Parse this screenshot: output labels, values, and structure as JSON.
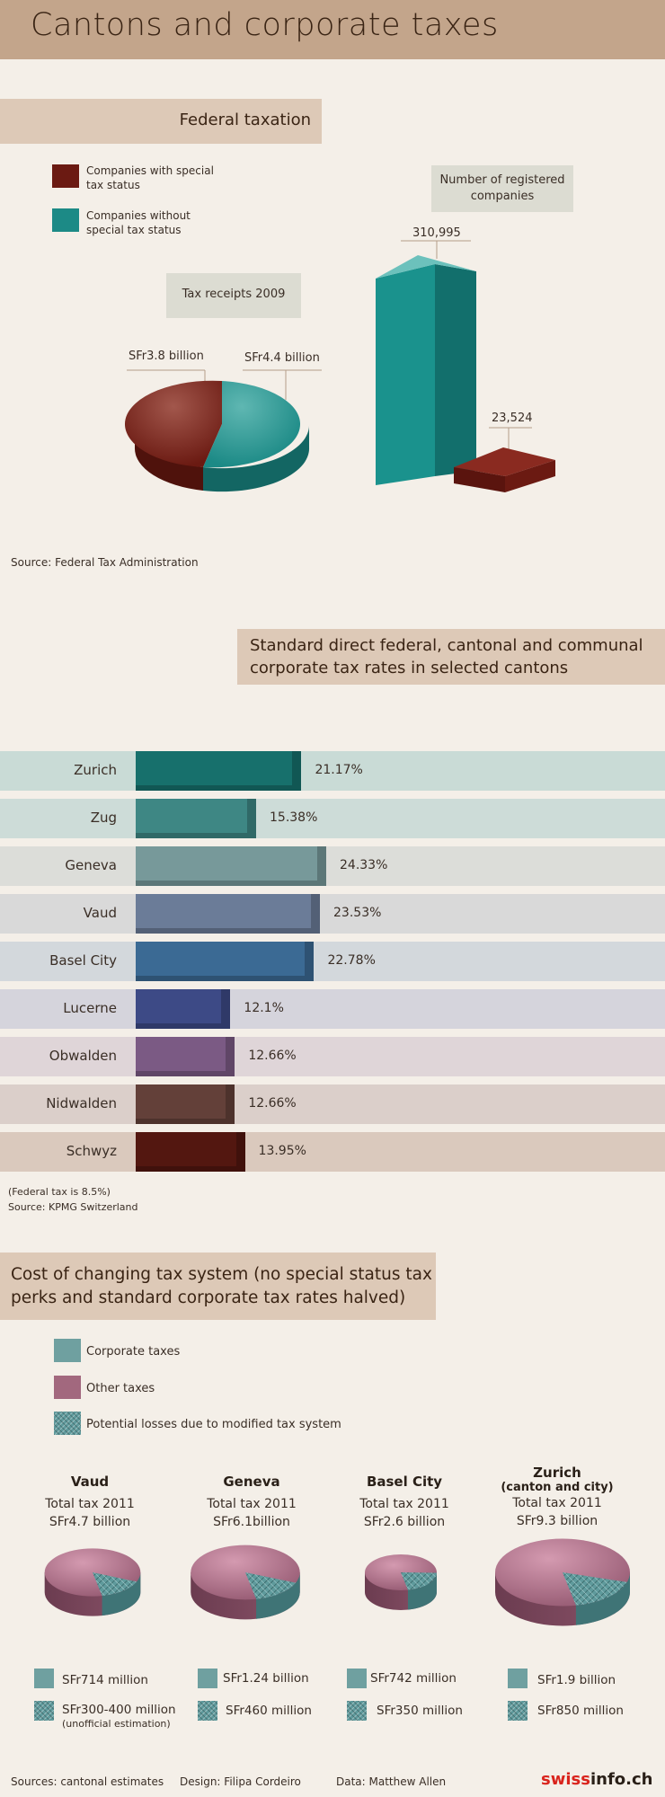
{
  "title": "Cantons and corporate taxes",
  "federal": {
    "heading": "Federal taxation",
    "legend": [
      {
        "label": "Companies with special tax status",
        "color": "#6b1a12"
      },
      {
        "label": "Companies without special tax status",
        "color": "#1c8a86"
      }
    ],
    "pie_title": "Tax receipts 2009",
    "pie_labels": [
      "SFr3.8 billion",
      "SFr4.4 billion"
    ],
    "bar_title": "Number of registered companies",
    "bar_labels": [
      "310,995",
      "23,524"
    ],
    "source": "Source: Federal Tax Administration"
  },
  "rates": {
    "heading": "Standard direct federal, cantonal and communal corporate tax rates in selected cantons",
    "note": "(Federal tax is 8.5%)",
    "source": "Source: KPMG Switzerland"
  },
  "cost": {
    "heading": "Cost of changing tax system (no special status tax perks and standard corporate tax rates halved)",
    "legend": [
      {
        "label": "Corporate taxes",
        "color": "#6fa0a0"
      },
      {
        "label": "Other taxes",
        "color": "#a2687e"
      },
      {
        "label": "Potential losses due to modified tax system",
        "color": "#5f9a9c"
      }
    ],
    "cantons": [
      {
        "name": "Vaud",
        "name2": "",
        "total": "Total tax 2011",
        "amount": "SFr4.7 billion",
        "corp": "SFr714 million",
        "loss": "SFr300-400 million",
        "loss_note": "(unofficial estimation)"
      },
      {
        "name": "Geneva",
        "name2": "",
        "total": "Total tax 2011",
        "amount": "SFr6.1billion",
        "corp": "SFr1.24 billion",
        "loss": "SFr460 million",
        "loss_note": ""
      },
      {
        "name": "Basel City",
        "name2": "",
        "total": "Total tax 2011",
        "amount": "SFr2.6 billion",
        "corp": "SFr742 million",
        "loss": "SFr350 million",
        "loss_note": ""
      },
      {
        "name": "Zurich",
        "name2": "(canton and city)",
        "total": "Total tax 2011",
        "amount": "SFr9.3 billion",
        "corp": "SFr1.9 billion",
        "loss": "SFr850 million",
        "loss_note": ""
      }
    ]
  },
  "footer": {
    "sources": "Sources: cantonal estimates",
    "design": "Design: Filipa Cordeiro",
    "data": "Data: Matthew Allen",
    "brand_a": "swiss",
    "brand_b": "info.ch"
  },
  "chart_data": [
    {
      "type": "pie",
      "title": "Tax receipts 2009",
      "categories": [
        "Companies with special tax status",
        "Companies without special tax status"
      ],
      "values": [
        3.8,
        4.4
      ],
      "units": "SFr billion"
    },
    {
      "type": "bar",
      "title": "Number of registered companies",
      "categories": [
        "Companies without special tax status",
        "Companies with special tax status"
      ],
      "values": [
        310995,
        23524
      ]
    },
    {
      "type": "bar",
      "title": "Standard direct federal, cantonal and communal corporate tax rates in selected cantons",
      "categories": [
        "Zurich",
        "Zug",
        "Geneva",
        "Vaud",
        "Basel City",
        "Lucerne",
        "Obwalden",
        "Nidwalden",
        "Schwyz"
      ],
      "values": [
        21.17,
        15.38,
        24.33,
        23.53,
        22.78,
        12.1,
        12.66,
        12.66,
        13.95
      ],
      "value_labels": [
        "21.17%",
        "15.38%",
        "24.33%",
        "23.53%",
        "22.78%",
        "12.1%",
        "12.66%",
        "12.66%",
        "13.95%"
      ],
      "bar_colors": [
        "#17706c",
        "#3e8784",
        "#77999a",
        "#6b7c98",
        "#3b6a94",
        "#3d4a86",
        "#7b5a84",
        "#634039",
        "#531710"
      ],
      "band_colors": [
        "#c9dbd6",
        "#cddcd8",
        "#dcddd9",
        "#d9d9d9",
        "#d3d8dc",
        "#d5d4dc",
        "#dfd5d8",
        "#dbcfca",
        "#dac9bd"
      ]
    },
    {
      "type": "pie",
      "title": "Cost of changing tax system",
      "categories": [
        "Vaud",
        "Geneva",
        "Basel City",
        "Zurich"
      ],
      "series": [
        {
          "name": "Total tax 2011",
          "values": [
            4.7,
            6.1,
            2.6,
            9.3
          ]
        },
        {
          "name": "Corporate taxes",
          "values": [
            0.714,
            1.24,
            0.742,
            1.9
          ]
        },
        {
          "name": "Potential losses due to modified tax system",
          "values": [
            0.35,
            0.46,
            0.35,
            0.85
          ]
        }
      ],
      "units": "SFr billion"
    }
  ]
}
